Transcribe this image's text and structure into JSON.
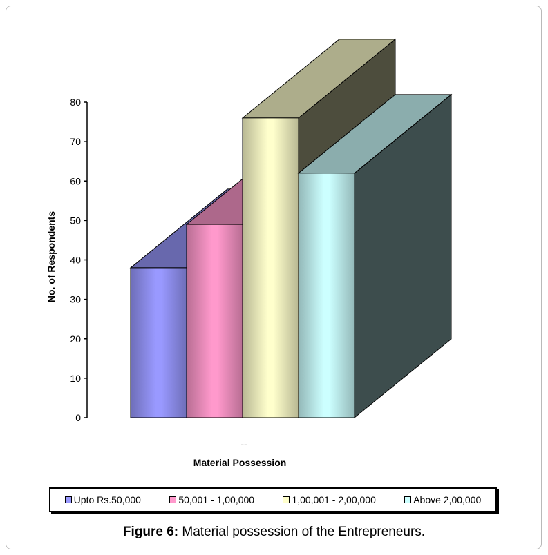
{
  "caption": {
    "label": "Figure 6:",
    "text": " Material possession of the Entrepreneurs."
  },
  "chart_data": {
    "type": "bar",
    "categories": [
      "--"
    ],
    "series": [
      {
        "name": "Upto Rs.50,000",
        "values": [
          38
        ],
        "color": "#9999ff"
      },
      {
        "name": "50,001 - 1,00,000",
        "values": [
          49
        ],
        "color": "#ff99cc"
      },
      {
        "name": "1,00,001 - 2,00,000",
        "values": [
          76
        ],
        "color": "#ffffcc"
      },
      {
        "name": "Above 2,00,000",
        "values": [
          62
        ],
        "color": "#ccffff"
      }
    ],
    "xlabel": "Material Possession",
    "ylabel": "No. of Respondents",
    "ylim": [
      0,
      80
    ],
    "yticks": [
      "0",
      "10",
      "20",
      "30",
      "40",
      "50",
      "60",
      "70",
      "80"
    ],
    "legend_position": "bottom",
    "style": "3d-cylinder"
  }
}
